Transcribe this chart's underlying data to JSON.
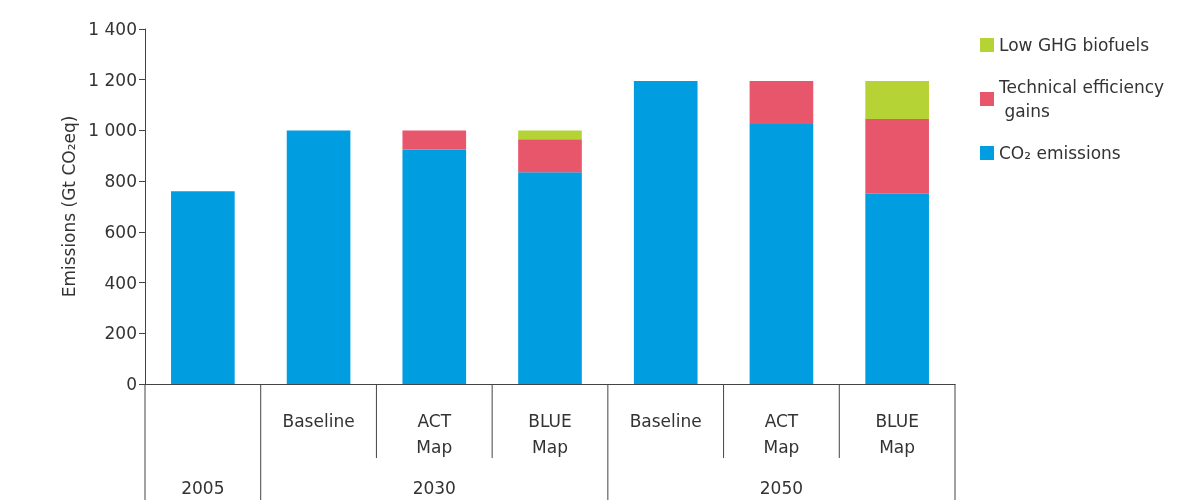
{
  "chart_data": {
    "type": "bar",
    "stacked": true,
    "ylabel": "Emissions (Gt CO₂eq)",
    "categories": [
      null,
      "Baseline",
      "ACT Map",
      "BLUE Map",
      "Baseline",
      "ACT Map",
      "BLUE Map"
    ],
    "series": [
      {
        "name": "CO₂ emissions",
        "color": "#009ee0",
        "values": [
          760,
          1000,
          925,
          835,
          1195,
          1025,
          750
        ]
      },
      {
        "name": "Technical efficiency gains",
        "color": "#e8566b",
        "values": [
          null,
          null,
          75,
          130,
          null,
          170,
          295
        ]
      },
      {
        "name": "Low GHG biofuels",
        "color": "#b5d334",
        "values": [
          null,
          null,
          null,
          35,
          null,
          null,
          150
        ]
      }
    ],
    "ylim": [
      0,
      1400
    ],
    "yticks": [
      0,
      200,
      400,
      600,
      800,
      {
        "value": 1000,
        "label": "1 000"
      },
      {
        "value": 1200,
        "label": "1 200"
      },
      {
        "value": 1400,
        "label": "1 400"
      }
    ],
    "annotations": [
      "2005",
      "2030",
      "2050"
    ],
    "grid": false,
    "legend": "right"
  }
}
